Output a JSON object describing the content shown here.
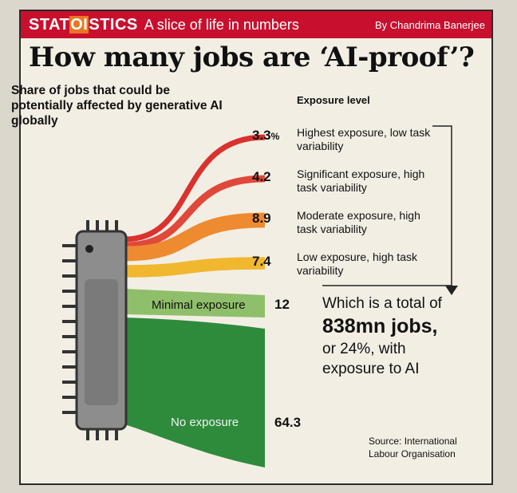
{
  "header": {
    "brand_pre": "STAT",
    "brand_hl": "OI",
    "brand_post": "STICS",
    "tagline": "A slice of life in numbers",
    "byline": "By Chandrima Banerjee"
  },
  "headline": "How many jobs are ‘AI-proof’?",
  "chart_data": {
    "type": "sankey",
    "title": "Share of jobs that could be potentially affected by generative AI globally",
    "legend_title": "Exposure level",
    "unit": "%",
    "categories": [
      "Highest exposure, low task variability",
      "Significant exposure, high task variability",
      "Moderate exposure, high task variability",
      "Low exposure, high task variability",
      "Minimal exposure",
      "No exposure"
    ],
    "values": [
      3.3,
      4.2,
      8.9,
      7.4,
      12,
      64.3
    ],
    "value_labels": [
      "3.3",
      "4.2",
      "8.9",
      "7.4",
      "12",
      "64.3"
    ],
    "colors": [
      "#d9322f",
      "#e0483a",
      "#ee8a2f",
      "#f0b72f",
      "#8fbf6a",
      "#2e8b3c"
    ]
  },
  "value_unit": "%",
  "total": {
    "line1": "Which is a total of",
    "line2": "838mn jobs,",
    "line3": "or 24%, with",
    "line4": "exposure to AI"
  },
  "source": "Source: International Labour Organisation"
}
